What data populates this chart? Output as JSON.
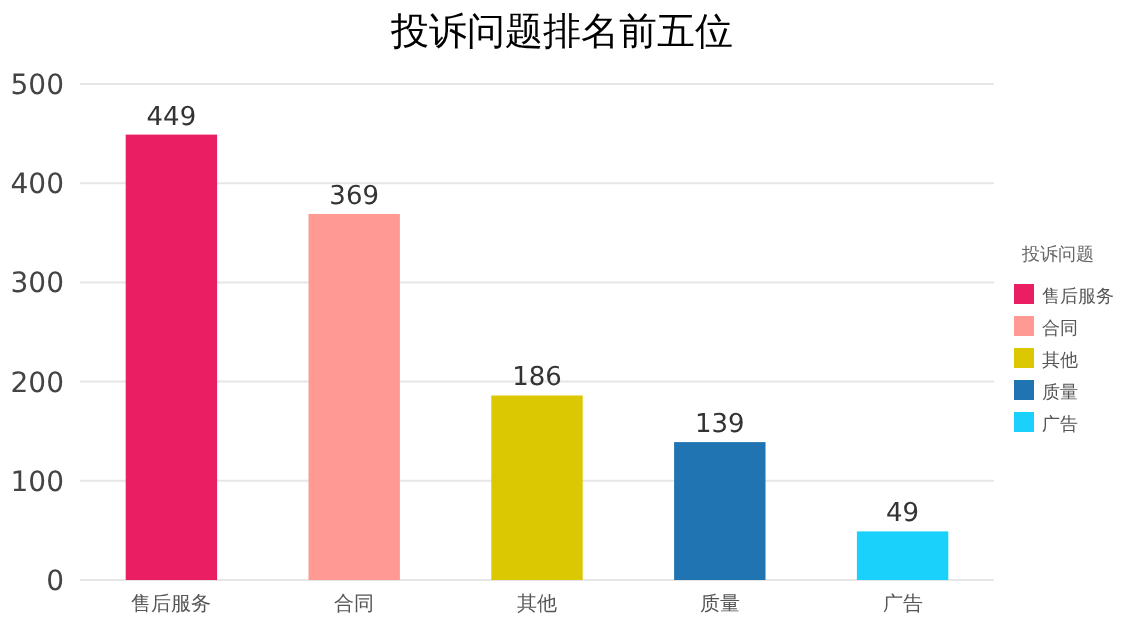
{
  "chart_data": {
    "type": "bar",
    "title": "投诉问题排名前五位",
    "legend_title": "投诉问题",
    "categories": [
      "售后服务",
      "合同",
      "其他",
      "质量",
      "广告"
    ],
    "series": [
      {
        "name": "售后服务",
        "color": "#e91e63",
        "values": [
          449,
          null,
          null,
          null,
          null
        ]
      },
      {
        "name": "合同",
        "color": "#ff9994",
        "values": [
          null,
          369,
          null,
          null,
          null
        ]
      },
      {
        "name": "其他",
        "color": "#dcc703",
        "values": [
          null,
          null,
          186,
          null,
          null
        ]
      },
      {
        "name": "质量",
        "color": "#1f74b1",
        "values": [
          null,
          null,
          null,
          139,
          null
        ]
      },
      {
        "name": "广告",
        "color": "#1ad1fb",
        "values": [
          null,
          null,
          null,
          null,
          49
        ]
      }
    ],
    "ylim": [
      0,
      500
    ],
    "yticks": [
      0,
      100,
      200,
      300,
      400,
      500
    ],
    "grid": "y",
    "legend": "right",
    "data_labels": true
  }
}
